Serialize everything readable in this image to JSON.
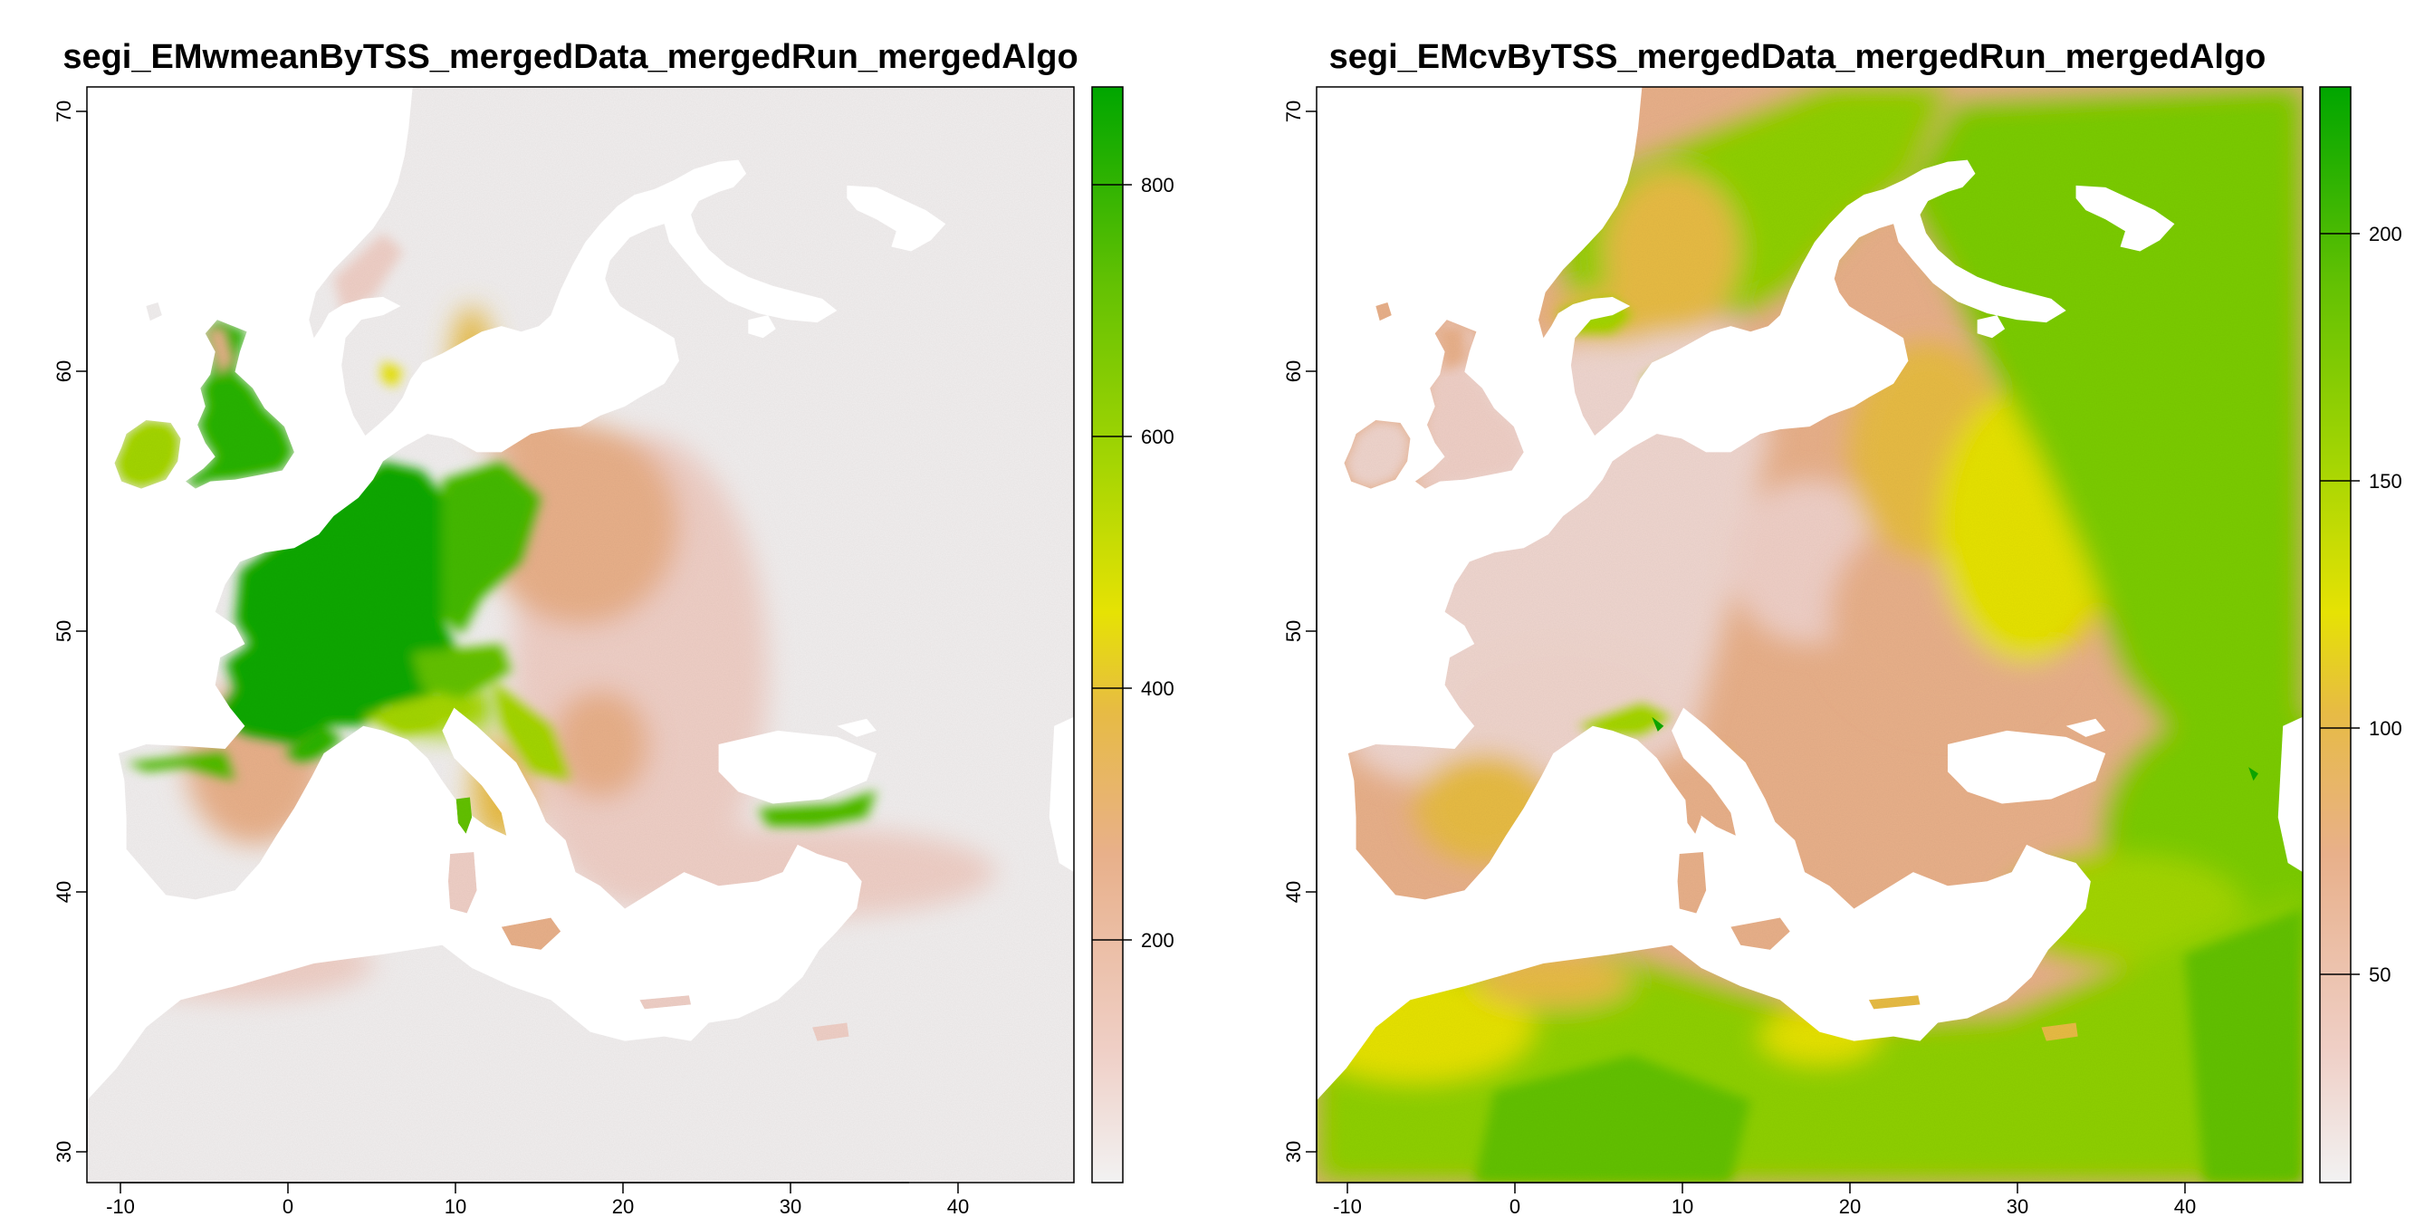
{
  "panels": [
    {
      "title": "segi_EMwmeanByTSS_mergedData_mergedRun_mergedAlgo",
      "x_ticks": [
        "-10",
        "0",
        "10",
        "20",
        "30",
        "40"
      ],
      "y_ticks": [
        "30",
        "40",
        "50",
        "60",
        "70"
      ],
      "legend_ticks": [
        "200",
        "400",
        "600",
        "800"
      ]
    },
    {
      "title": "segi_EMcvByTSS_mergedData_mergedRun_mergedAlgo",
      "x_ticks": [
        "-10",
        "0",
        "10",
        "20",
        "30",
        "40"
      ],
      "y_ticks": [
        "30",
        "40",
        "50",
        "60",
        "70"
      ],
      "legend_ticks": [
        "50",
        "100",
        "150",
        "200"
      ]
    }
  ],
  "map_data": [
    {
      "type": "raster",
      "x_range": [
        -11,
        48
      ],
      "y_range": [
        29,
        71
      ],
      "x_ticks": [
        -10,
        0,
        10,
        20,
        30,
        40
      ],
      "y_ticks": [
        30,
        40,
        50,
        60,
        70
      ],
      "legend_range": [
        0,
        870
      ],
      "legend_ticks": [
        200,
        400,
        600,
        800
      ]
    },
    {
      "type": "raster",
      "x_range": [
        -11,
        48
      ],
      "y_range": [
        29,
        71
      ],
      "x_ticks": [
        -10,
        0,
        10,
        20,
        30,
        40
      ],
      "y_ticks": [
        30,
        40,
        50,
        60,
        70
      ],
      "legend_range": [
        10,
        232
      ],
      "legend_ticks": [
        50,
        100,
        150,
        200
      ]
    }
  ],
  "colors": {
    "low": "#f2f2f2",
    "pink": "#efcfc6",
    "tan": "#e8b08a",
    "orange": "#e7bb44",
    "yellow": "#e6e204",
    "lime": "#a3d503",
    "green": "#6cc804",
    "dark_green": "#00a600"
  }
}
